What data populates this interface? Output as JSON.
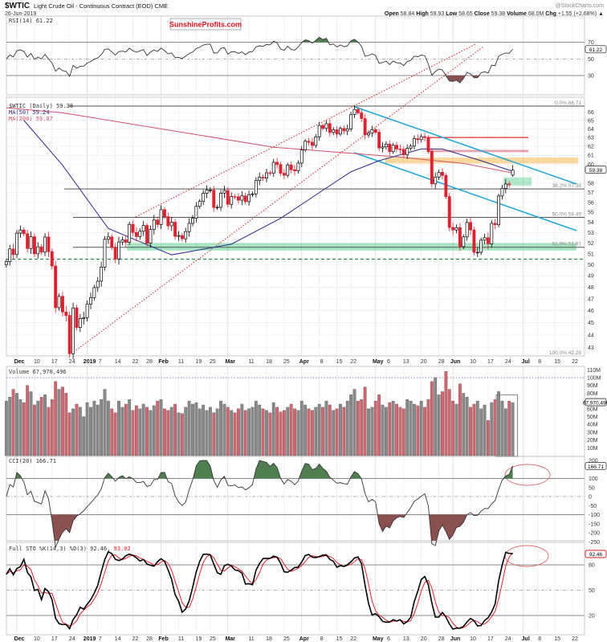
{
  "header": {
    "symbol": "$WTIC",
    "title": "Light Crude Oil - Continuous Contract (EOD) CME",
    "date": "26-Jun-2019",
    "source": "@StockCharts.com",
    "open_label": "Open",
    "open": "58.84",
    "high_label": "High",
    "high": "59.93",
    "low_label": "Low",
    "low": "58.65",
    "close_label": "Close",
    "close": "59.38",
    "volume_label": "Volume",
    "volume": "68.0M",
    "chg_label": "Chg",
    "chg": "+1.55 (+2.68%) ▲"
  },
  "watermark": "SunshineProfits.com",
  "colors": {
    "up": "#000000",
    "down": "#e0202e",
    "ma50": "#2b2b8c",
    "ma200": "#d0506a",
    "channel": "#1ea6dc",
    "green_fill": "#4f7f4f",
    "brown_fill": "#8b5050",
    "sto_d": "#e0202e"
  },
  "chart_data": {
    "type": "candlestick",
    "panels": {
      "rsi": {
        "label": "RSI(14) 61.22",
        "value": "61.22",
        "ticks": [
          70,
          50,
          30
        ],
        "overbought": 70,
        "oversold": 30
      },
      "price": {
        "label": "$WTIC (Daily) 59.38",
        "last": "59.38",
        "ma50_label": "MA(50) 59.24",
        "ma200_label": "MA(200) 59.07",
        "ticks": [
          66,
          65,
          64,
          63,
          62,
          61,
          60,
          58,
          57,
          56,
          55,
          54,
          53,
          52,
          51,
          50,
          49,
          48,
          47,
          46,
          45,
          44,
          43
        ],
        "scale": "log",
        "fib": [
          {
            "label": "0.0% 66.71",
            "value": 66.71
          },
          {
            "label": "38.2% 57.38",
            "value": 57.38
          },
          {
            "label": "50.0% 54.49",
            "value": 54.49
          },
          {
            "label": "61.8% 51.61",
            "value": 51.61
          },
          {
            "label": "100.0% 42.28",
            "value": 42.28
          }
        ]
      },
      "volume": {
        "label": "Volume 67,970,496",
        "value": "67,970,496",
        "ticks": [
          "110M",
          "100M",
          "90M",
          "80M",
          "60M",
          "50M",
          "40M",
          "30M",
          "20M",
          "10M"
        ],
        "tick_values": [
          110,
          100,
          90,
          80,
          60,
          50,
          40,
          30,
          20,
          10
        ]
      },
      "cci": {
        "label": "CCI(20) 166.71",
        "value": "166.71",
        "ticks": [
          200,
          100,
          50,
          0,
          -50,
          -100,
          -150,
          -200,
          -250
        ]
      },
      "sto": {
        "label": "Full STO %K(14,3) %D(3) 92.46,",
        "d_value": "93.02",
        "value": "92.46",
        "ticks": [
          80,
          50,
          20
        ]
      }
    },
    "x_labels": [
      {
        "label": "Dec",
        "i": 3,
        "bold": true
      },
      {
        "label": "10",
        "i": 8
      },
      {
        "label": "17",
        "i": 13
      },
      {
        "label": "24",
        "i": 18
      },
      {
        "label": "2019",
        "i": 23,
        "bold": true
      },
      {
        "label": "7",
        "i": 26
      },
      {
        "label": "14",
        "i": 31
      },
      {
        "label": "22",
        "i": 36
      },
      {
        "label": "28",
        "i": 40
      },
      {
        "label": "Feb",
        "i": 44,
        "bold": true
      },
      {
        "label": "11",
        "i": 49
      },
      {
        "label": "19",
        "i": 54
      },
      {
        "label": "25",
        "i": 58
      },
      {
        "label": "Mar",
        "i": 63,
        "bold": true
      },
      {
        "label": "11",
        "i": 69
      },
      {
        "label": "18",
        "i": 74
      },
      {
        "label": "25",
        "i": 79
      },
      {
        "label": "Apr",
        "i": 84,
        "bold": true
      },
      {
        "label": "8",
        "i": 89
      },
      {
        "label": "15",
        "i": 94
      },
      {
        "label": "22",
        "i": 98
      },
      {
        "label": "May",
        "i": 105,
        "bold": true
      },
      {
        "label": "6",
        "i": 108
      },
      {
        "label": "13",
        "i": 113
      },
      {
        "label": "20",
        "i": 118
      },
      {
        "label": "28",
        "i": 123
      },
      {
        "label": "Jun",
        "i": 127,
        "bold": true
      },
      {
        "label": "10",
        "i": 132
      },
      {
        "label": "17",
        "i": 137
      },
      {
        "label": "24",
        "i": 142
      },
      {
        "label": "Jul",
        "i": 147,
        "bold": true
      },
      {
        "label": "8",
        "i": 151
      },
      {
        "label": "15",
        "i": 156
      },
      {
        "label": "22",
        "i": 161
      }
    ],
    "close": [
      50.29,
      51.45,
      50.93,
      52.95,
      53.25,
      52.89,
      51.49,
      52.61,
      51.0,
      51.65,
      51.15,
      52.58,
      51.2,
      49.88,
      46.24,
      47.2,
      45.88,
      45.59,
      42.53,
      46.22,
      44.61,
      45.33,
      45.41,
      46.54,
      47.09,
      47.96,
      48.52,
      49.78,
      52.36,
      52.59,
      51.59,
      50.51,
      52.11,
      52.31,
      52.07,
      53.8,
      53.01,
      52.62,
      53.13,
      53.69,
      51.99,
      53.31,
      54.23,
      53.79,
      55.26,
      54.56,
      53.66,
      54.01,
      52.64,
      52.72,
      52.41,
      53.1,
      53.9,
      54.41,
      55.59,
      56.09,
      56.92,
      57.26,
      57.26,
      55.48,
      55.5,
      56.94,
      57.22,
      55.8,
      56.59,
      56.56,
      56.22,
      56.66,
      56.07,
      56.79,
      56.87,
      58.26,
      58.61,
      58.52,
      59.09,
      59.03,
      60.23,
      59.98,
      59.04,
      58.82,
      59.94,
      59.41,
      59.3,
      60.14,
      61.59,
      62.58,
      62.46,
      62.1,
      63.08,
      64.4,
      64.05,
      64.61,
      63.58,
      63.89,
      63.4,
      64.05,
      63.76,
      64.0,
      65.7,
      66.3,
      65.89,
      65.21,
      63.3,
      63.5,
      63.91,
      63.6,
      61.81,
      61.94,
      62.25,
      61.4,
      62.12,
      61.7,
      61.66,
      61.04,
      61.78,
      62.02,
      62.87,
      62.76,
      63.1,
      62.99,
      61.42,
      57.91,
      58.63,
      59.14,
      58.81,
      56.59,
      53.5,
      53.25,
      53.48,
      51.68,
      52.59,
      53.99,
      53.26,
      51.14,
      51.14,
      52.28,
      52.51,
      51.93,
      53.9,
      53.76,
      56.65,
      57.43,
      57.9,
      57.83,
      59.38
    ],
    "last_ohlc": {
      "open": 58.84,
      "high": 59.93,
      "low": 58.65,
      "close": 59.38
    },
    "volume_m": [
      70,
      75,
      85,
      80,
      72,
      68,
      90,
      82,
      65,
      70,
      75,
      78,
      62,
      72,
      95,
      85,
      88,
      80,
      55,
      60,
      66,
      62,
      50,
      68,
      62,
      70,
      65,
      72,
      85,
      70,
      60,
      55,
      70,
      62,
      66,
      72,
      58,
      64,
      60,
      66,
      62,
      58,
      64,
      70,
      72,
      60,
      58,
      62,
      66,
      55,
      54,
      62,
      70,
      66,
      68,
      60,
      65,
      58,
      62,
      55,
      60,
      70,
      66,
      62,
      58,
      55,
      60,
      66,
      58,
      60,
      62,
      70,
      65,
      60,
      58,
      55,
      68,
      62,
      56,
      58,
      62,
      66,
      60,
      58,
      70,
      65,
      60,
      58,
      62,
      66,
      62,
      70,
      65,
      58,
      60,
      66,
      62,
      70,
      78,
      85,
      70,
      72,
      88,
      60,
      62,
      70,
      78,
      65,
      62,
      68,
      70,
      66,
      62,
      60,
      72,
      70,
      66,
      64,
      70,
      62,
      72,
      95,
      100,
      78,
      82,
      108,
      85,
      70,
      66,
      92,
      80,
      75,
      62,
      66,
      70,
      60,
      65,
      45,
      68,
      72,
      82,
      70,
      60,
      70,
      67.97
    ],
    "ma50": [
      [
        5,
        65
      ],
      [
        16,
        59.9
      ],
      [
        29,
        53.4
      ],
      [
        47,
        50.9
      ],
      [
        64,
        51.9
      ],
      [
        78,
        54.4
      ],
      [
        98,
        59.2
      ],
      [
        106,
        60.4
      ],
      [
        118,
        61.7
      ],
      [
        124,
        61.7
      ],
      [
        135,
        60.4
      ],
      [
        144,
        59.24
      ]
    ],
    "ma200": [
      [
        0,
        66.5
      ],
      [
        16,
        65.9
      ],
      [
        76,
        61.9
      ],
      [
        112,
        60.8
      ],
      [
        130,
        60.1
      ],
      [
        144,
        59.07
      ]
    ],
    "annotations": {
      "resistance_line": 63.0,
      "resistance_band": [
        61.35,
        61.6
      ],
      "orange_zone": [
        60.1,
        60.75
      ],
      "gap_zone": [
        57.7,
        58.6
      ],
      "support_band": [
        51.3,
        52.0
      ],
      "dashed_support": 50.5
    }
  }
}
